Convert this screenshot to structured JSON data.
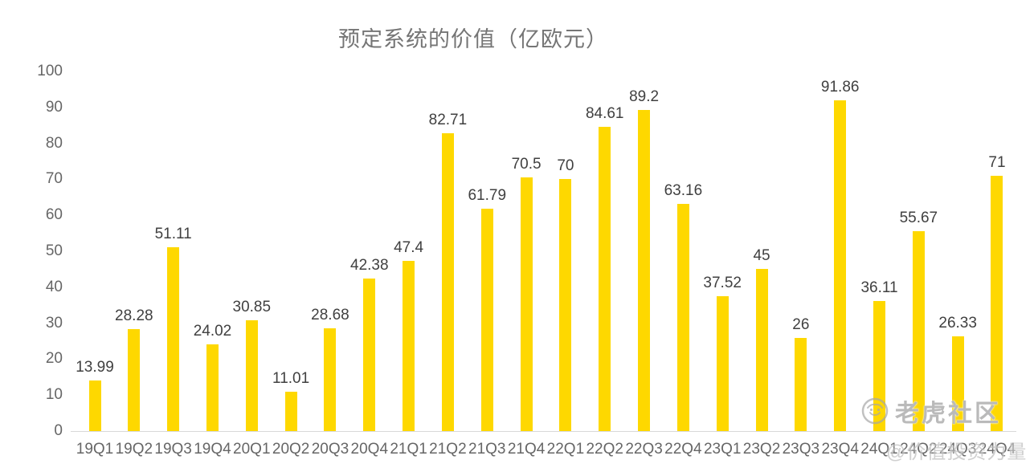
{
  "watermark": {
    "brand": "老虎社区",
    "handle": "@价值投资力量",
    "logo_icon": "tiger-circle-icon"
  },
  "chart_data": {
    "type": "bar",
    "title": "预定系统的价值（亿欧元）",
    "categories": [
      "19Q1",
      "19Q2",
      "19Q3",
      "19Q4",
      "20Q1",
      "20Q2",
      "20Q3",
      "20Q4",
      "21Q1",
      "21Q2",
      "21Q3",
      "21Q4",
      "22Q1",
      "22Q2",
      "22Q3",
      "22Q4",
      "23Q1",
      "23Q2",
      "23Q3",
      "23Q4",
      "24Q1",
      "24Q2",
      "24Q3",
      "24Q4"
    ],
    "values": [
      13.99,
      28.28,
      51.11,
      24.02,
      30.85,
      11.01,
      28.68,
      42.38,
      47.4,
      82.71,
      61.79,
      70.5,
      70,
      84.61,
      89.2,
      63.16,
      37.52,
      45,
      26,
      91.86,
      36.11,
      55.67,
      26.33,
      71
    ],
    "data_labels": [
      "13.99",
      "28.28",
      "51.11",
      "24.02",
      "30.85",
      "11.01",
      "28.68",
      "42.38",
      "47.4",
      "82.71",
      "61.79",
      "70.5",
      "70",
      "84.61",
      "89.2",
      "63.16",
      "37.52",
      "45",
      "26",
      "91.86",
      "36.11",
      "55.67",
      "26.33",
      "71"
    ],
    "xlabel": "",
    "ylabel": "",
    "ylim": [
      0,
      100
    ],
    "yticks": [
      0,
      10,
      20,
      30,
      40,
      50,
      60,
      70,
      80,
      90,
      100
    ],
    "grid": false,
    "legend": "none",
    "bar_color": "#FED800",
    "label_color": "#404040",
    "axis_text_color": "#666666",
    "title_color": "#757575",
    "baseline_color": "#d9d9d9"
  }
}
